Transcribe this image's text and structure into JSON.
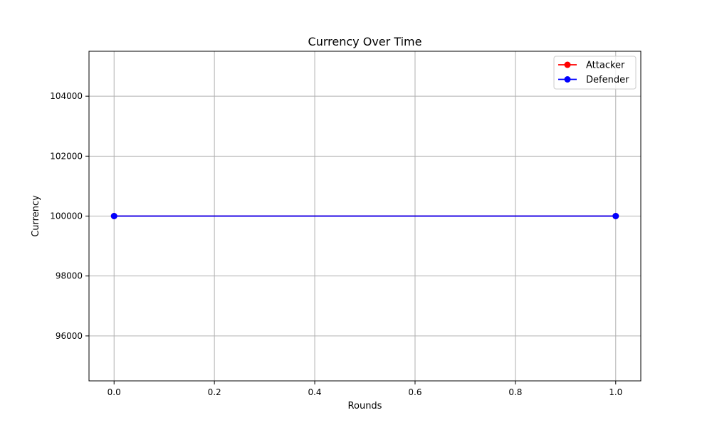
{
  "chart_data": {
    "type": "line",
    "title": "Currency Over Time",
    "xlabel": "Rounds",
    "ylabel": "Currency",
    "xlim": [
      -0.05,
      1.05
    ],
    "ylim": [
      94500,
      105500
    ],
    "xticks": [
      0.0,
      0.2,
      0.4,
      0.6,
      0.8,
      1.0
    ],
    "xtick_labels": [
      "0.0",
      "0.2",
      "0.4",
      "0.6",
      "0.8",
      "1.0"
    ],
    "yticks": [
      96000,
      98000,
      100000,
      102000,
      104000
    ],
    "ytick_labels": [
      "96000",
      "98000",
      "100000",
      "102000",
      "104000"
    ],
    "grid": true,
    "legend_position": "top-right",
    "series": [
      {
        "name": "Attacker",
        "color": "#ff0000",
        "marker": "circle",
        "x": [
          0,
          1
        ],
        "y": [
          100000,
          100000
        ]
      },
      {
        "name": "Defender",
        "color": "#0000ff",
        "marker": "circle",
        "x": [
          0,
          1
        ],
        "y": [
          100000,
          100000
        ]
      }
    ]
  }
}
